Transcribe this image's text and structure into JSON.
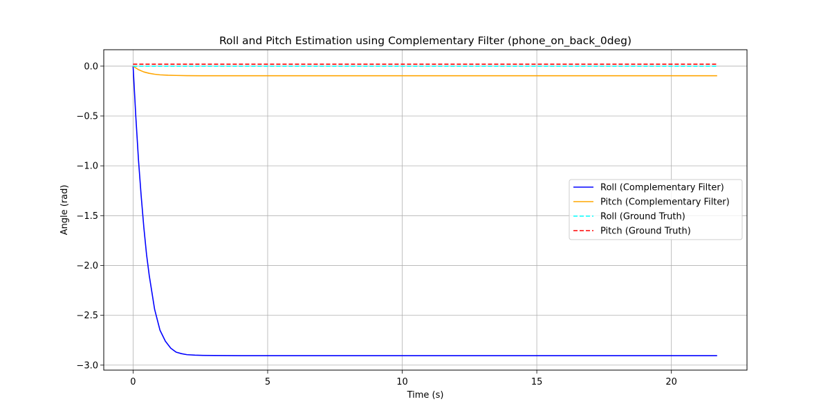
{
  "chart_data": {
    "type": "line",
    "title": "Roll and Pitch Estimation using Complementary Filter (phone_on_back_0deg)",
    "xlabel": "Time (s)",
    "ylabel": "Angle (rad)",
    "xlim": [
      -1.09,
      22.81
    ],
    "ylim": [
      -3.05,
      0.165
    ],
    "xticks": [
      0,
      5,
      10,
      15,
      20
    ],
    "xtick_labels": [
      "0",
      "5",
      "10",
      "15",
      "20"
    ],
    "yticks": [
      0.0,
      -0.5,
      -1.0,
      -1.5,
      -2.0,
      -2.5,
      -3.0
    ],
    "ytick_labels": [
      "0.0",
      "−0.5",
      "−1.0",
      "−1.5",
      "−2.0",
      "−2.5",
      "−3.0"
    ],
    "grid": true,
    "legend_position": "center-right",
    "series": [
      {
        "name": "Roll (Complementary Filter)",
        "color": "#0000ff",
        "style": "solid",
        "x": [
          0,
          0.1,
          0.2,
          0.3,
          0.4,
          0.5,
          0.6,
          0.8,
          1.0,
          1.2,
          1.4,
          1.6,
          1.8,
          2.0,
          2.3,
          2.6,
          3.0,
          3.5,
          4.0,
          5.0,
          6.0,
          8.0,
          10.0,
          15.0,
          20.0,
          21.7
        ],
        "y": [
          0.0,
          -0.5,
          -0.94,
          -1.3,
          -1.62,
          -1.89,
          -2.1,
          -2.44,
          -2.65,
          -2.76,
          -2.83,
          -2.87,
          -2.885,
          -2.895,
          -2.9,
          -2.902,
          -2.903,
          -2.904,
          -2.905,
          -2.905,
          -2.905,
          -2.905,
          -2.905,
          -2.905,
          -2.905,
          -2.905
        ]
      },
      {
        "name": "Pitch (Complementary Filter)",
        "color": "#ffa500",
        "style": "solid",
        "x": [
          0,
          0.2,
          0.4,
          0.6,
          0.8,
          1.0,
          1.3,
          1.6,
          2.0,
          2.5,
          3.0,
          4.0,
          5.0,
          10.0,
          15.0,
          20.0,
          21.7
        ],
        "y": [
          0.0,
          -0.035,
          -0.058,
          -0.072,
          -0.081,
          -0.087,
          -0.091,
          -0.093,
          -0.095,
          -0.096,
          -0.096,
          -0.096,
          -0.096,
          -0.096,
          -0.096,
          -0.096,
          -0.096
        ]
      },
      {
        "name": "Roll (Ground Truth)",
        "color": "#00ffff",
        "style": "dashed",
        "x": [
          0,
          21.7
        ],
        "y": [
          0.0,
          0.0
        ]
      },
      {
        "name": "Pitch (Ground Truth)",
        "color": "#ff0000",
        "style": "dashed",
        "x": [
          0,
          21.7
        ],
        "y": [
          0.02,
          0.02
        ]
      }
    ]
  }
}
